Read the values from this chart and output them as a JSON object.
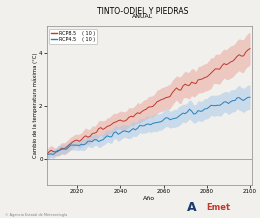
{
  "title": "TINTO-ODIEL Y PIEDRAS",
  "subtitle": "ANUAL",
  "xlabel": "Año",
  "ylabel": "Cambio de la temperatura máxima (°C)",
  "ylim": [
    -1,
    5
  ],
  "xlim": [
    2006,
    2101
  ],
  "yticks": [
    0,
    2,
    4
  ],
  "xticks": [
    2020,
    2040,
    2060,
    2080,
    2100
  ],
  "legend_rcp85": "RCP8.5",
  "legend_rcp45": "RCP4.5",
  "legend_n": "( 10 )",
  "rcp85_color": "#c0392b",
  "rcp45_color": "#2980b9",
  "rcp85_fill": "#e8a89e",
  "rcp45_fill": "#a8c8e8",
  "bg_color": "#f2f0ed",
  "plot_bg": "#f2f0ed",
  "seed": 7
}
